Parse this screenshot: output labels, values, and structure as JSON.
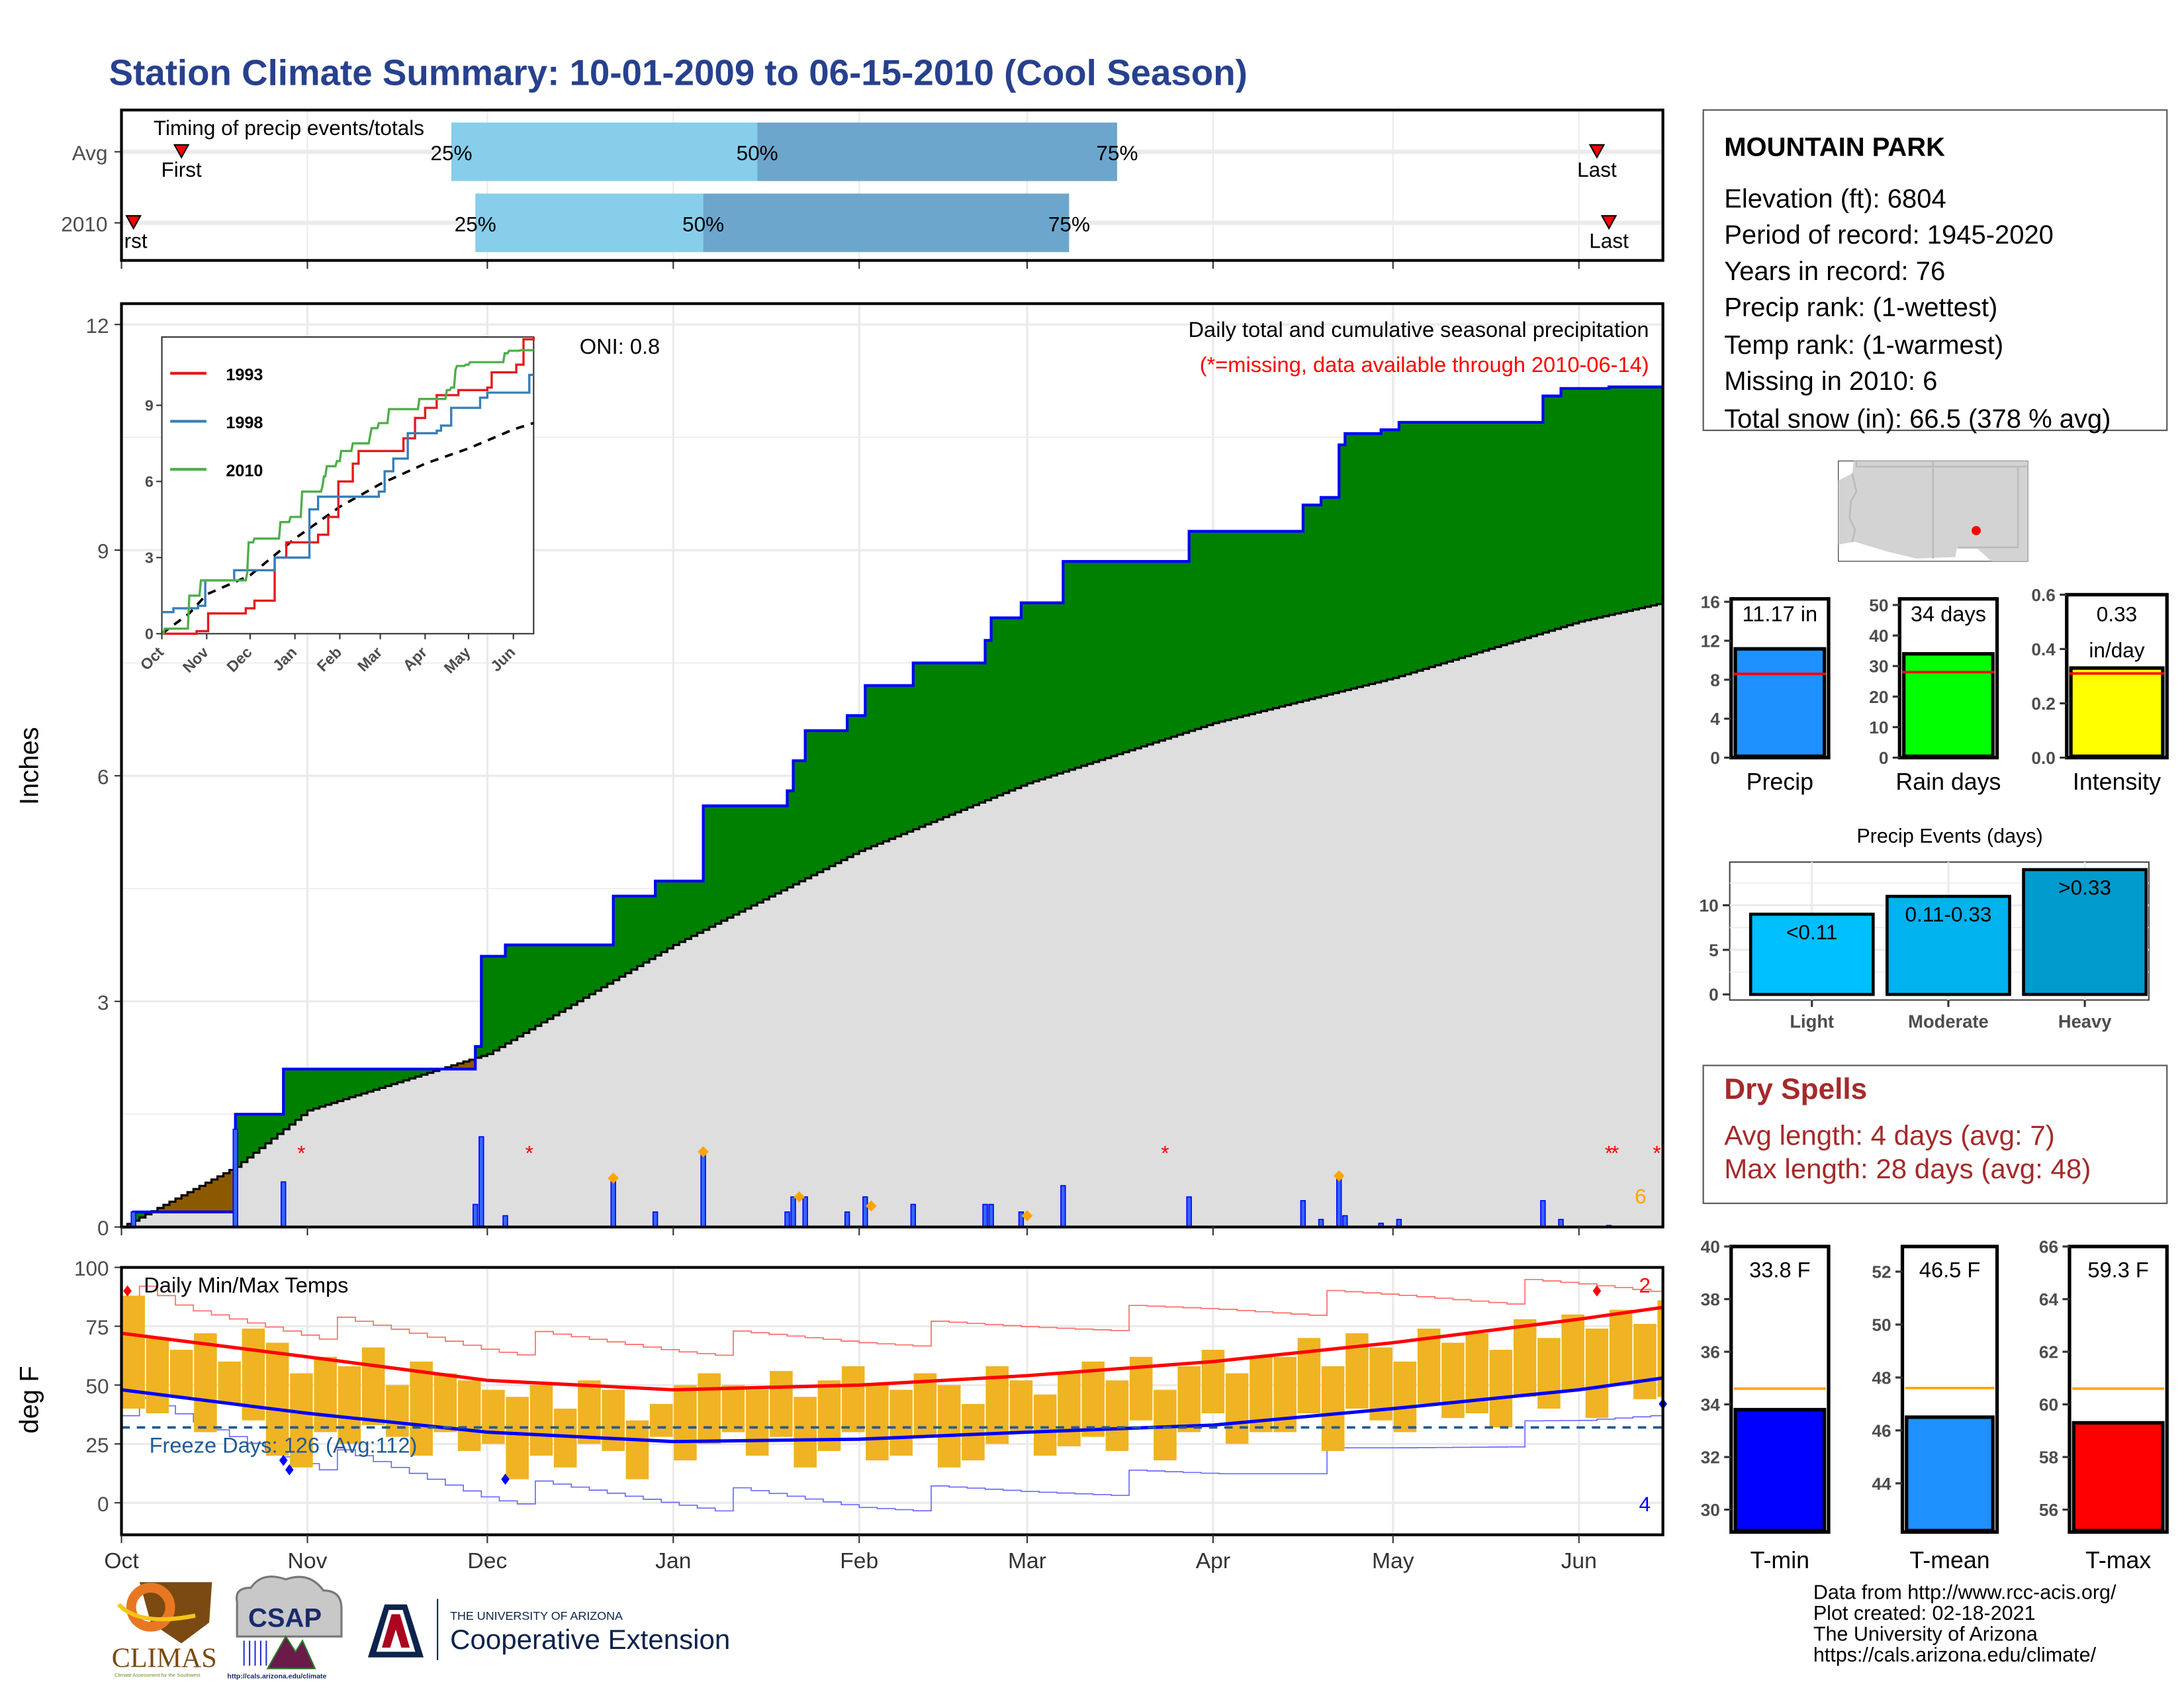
{
  "title": "Station Climate Summary: 10-01-2009 to 06-15-2010 (Cool Season)",
  "colors": {
    "title": "#27418e",
    "green": "#008000",
    "brown": "#8b5a00",
    "gray_area": "#dedede",
    "blue": "#0000ff",
    "red": "#ff0000",
    "orange": "#ffa500",
    "bar_temp": "#f0b323",
    "freeze": "#1f5a96",
    "dry": "#a52a2a"
  },
  "months": [
    {
      "label": "Oct",
      "day": 0
    },
    {
      "label": "Nov",
      "day": 31
    },
    {
      "label": "Dec",
      "day": 61
    },
    {
      "label": "Jan",
      "day": 92
    },
    {
      "label": "Feb",
      "day": 123
    },
    {
      "label": "Mar",
      "day": 151
    },
    {
      "label": "Apr",
      "day": 182
    },
    {
      "label": "May",
      "day": 212
    },
    {
      "label": "Jun",
      "day": 243
    }
  ],
  "season_days": 257,
  "timing": {
    "title": "Timing of precip events/totals",
    "rows": [
      {
        "label": "Avg",
        "first": 10,
        "last": 246,
        "q25": 55,
        "q50": 106,
        "q75": 166,
        "first_label": "First",
        "last_label": "Last",
        "q25_label": "25%",
        "q50_label": "50%",
        "q75_label": "75%"
      },
      {
        "label": "2010",
        "first": 2,
        "last": 248,
        "q25": 59,
        "q50": 97,
        "q75": 158,
        "first_label": "irst",
        "last_label": "Last",
        "q25_label": "25%",
        "q50_label": "50%",
        "q75_label": "75%"
      }
    ]
  },
  "chart_data": [
    {
      "type": "area",
      "name": "precip",
      "title": "Daily total and cumulative seasonal precipitation",
      "subtitle": "(*=missing, data available through 2010-06-14)",
      "ylabel": "Inches",
      "ylim": [
        0,
        12.3
      ],
      "yticks": [
        {
          "v": 0,
          "label": "0"
        },
        {
          "v": 3,
          "label": "3"
        },
        {
          "v": 6,
          "label": "6"
        },
        {
          "v": 9,
          "label": "9"
        },
        {
          "v": 12,
          "label": "12"
        }
      ],
      "oni": "ONI: 0.8",
      "events": [
        [
          2,
          0.2
        ],
        [
          19,
          1.3
        ],
        [
          27,
          0.6
        ],
        [
          59,
          0.3
        ],
        [
          60,
          1.2
        ],
        [
          64,
          0.15
        ],
        [
          82,
          0.65
        ],
        [
          89,
          0.2
        ],
        [
          97,
          1.0
        ],
        [
          111,
          0.2
        ],
        [
          112,
          0.4
        ],
        [
          114,
          0.4
        ],
        [
          121,
          0.2
        ],
        [
          124,
          0.4
        ],
        [
          132,
          0.3
        ],
        [
          144,
          0.3
        ],
        [
          145,
          0.3
        ],
        [
          150,
          0.2
        ],
        [
          157,
          0.55
        ],
        [
          178,
          0.4
        ],
        [
          197,
          0.35
        ],
        [
          200,
          0.1
        ],
        [
          203,
          0.7
        ],
        [
          204,
          0.15
        ],
        [
          210,
          0.05
        ],
        [
          213,
          0.1
        ],
        [
          237,
          0.35
        ],
        [
          240,
          0.1
        ],
        [
          248,
          0.02
        ]
      ],
      "avg_cumulative": [
        [
          0,
          0
        ],
        [
          19,
          0.8
        ],
        [
          31,
          1.55
        ],
        [
          61,
          2.3
        ],
        [
          92,
          3.75
        ],
        [
          123,
          5.0
        ],
        [
          151,
          5.9
        ],
        [
          182,
          6.7
        ],
        [
          212,
          7.3
        ],
        [
          243,
          8.05
        ],
        [
          257,
          8.3
        ]
      ],
      "missing_days": [
        30,
        68,
        174,
        248,
        249,
        256
      ],
      "snow_days": [
        [
          82,
          0.65
        ],
        [
          97,
          1.0
        ],
        [
          113,
          0.4
        ],
        [
          125,
          0.28
        ],
        [
          151,
          0.15
        ],
        [
          203,
          0.68
        ]
      ],
      "snow_count_label": "6"
    },
    {
      "type": "line",
      "name": "inset-cumulative",
      "ylim": [
        0,
        11.7
      ],
      "yticks": [
        {
          "v": 0,
          "label": "0"
        },
        {
          "v": 3,
          "label": "3"
        },
        {
          "v": 6,
          "label": "6"
        },
        {
          "v": 9,
          "label": "9"
        }
      ],
      "legend": [
        {
          "name": "1993",
          "color": "#e41a1c"
        },
        {
          "name": "1998",
          "color": "#377eb8"
        },
        {
          "name": "2010",
          "color": "#4daf4a"
        }
      ],
      "series": [
        {
          "name": "1993",
          "points": [
            [
              0,
              0
            ],
            [
              24,
              0.1
            ],
            [
              32,
              0.8
            ],
            [
              58,
              1.0
            ],
            [
              64,
              1.3
            ],
            [
              78,
              3.0
            ],
            [
              86,
              3.6
            ],
            [
              108,
              3.9
            ],
            [
              115,
              4.6
            ],
            [
              122,
              6.0
            ],
            [
              132,
              6.7
            ],
            [
              136,
              7.2
            ],
            [
              162,
              7.2
            ],
            [
              167,
              7.7
            ],
            [
              175,
              8.5
            ],
            [
              182,
              8.9
            ],
            [
              190,
              9.4
            ],
            [
              205,
              9.6
            ],
            [
              225,
              9.7
            ],
            [
              228,
              10.3
            ],
            [
              245,
              10.6
            ],
            [
              250,
              11.6
            ],
            [
              257,
              11.7
            ]
          ]
        },
        {
          "name": "1998",
          "points": [
            [
              0,
              0.85
            ],
            [
              8,
              1.0
            ],
            [
              25,
              1.1
            ],
            [
              30,
              2.1
            ],
            [
              50,
              2.5
            ],
            [
              78,
              3.0
            ],
            [
              98,
              3.0
            ],
            [
              102,
              4.9
            ],
            [
              108,
              5.4
            ],
            [
              150,
              5.6
            ],
            [
              154,
              6.4
            ],
            [
              160,
              6.9
            ],
            [
              170,
              7.9
            ],
            [
              190,
              8.0
            ],
            [
              193,
              8.2
            ],
            [
              200,
              8.9
            ],
            [
              220,
              9.3
            ],
            [
              225,
              9.5
            ],
            [
              252,
              9.5
            ],
            [
              254,
              10.2
            ],
            [
              257,
              10.2
            ]
          ]
        }
      ]
    },
    {
      "type": "bar",
      "name": "temps",
      "title": "Daily Min/Max Temps",
      "ylabel": "deg F",
      "ylim": [
        -12,
        100
      ],
      "yticks": [
        {
          "v": 0,
          "label": "0"
        },
        {
          "v": 25,
          "label": "25"
        },
        {
          "v": 50,
          "label": "50"
        },
        {
          "v": 75,
          "label": "75"
        },
        {
          "v": 100,
          "label": "100"
        }
      ],
      "bin_days": 4,
      "max": [
        88,
        70,
        65,
        72,
        60,
        74,
        68,
        55,
        62,
        58,
        66,
        50,
        60,
        55,
        52,
        48,
        45,
        50,
        40,
        52,
        48,
        35,
        42,
        50,
        55,
        50,
        48,
        56,
        45,
        52,
        58,
        50,
        48,
        55,
        50,
        42,
        58,
        52,
        46,
        55,
        60,
        52,
        62,
        48,
        58,
        65,
        55,
        62,
        62,
        70,
        58,
        72,
        66,
        60,
        74,
        68,
        72,
        65,
        78,
        70,
        80,
        74,
        82,
        76,
        86,
        82,
        90,
        84
      ],
      "min": [
        40,
        38,
        45,
        30,
        42,
        35,
        20,
        15,
        30,
        25,
        33,
        28,
        20,
        30,
        22,
        25,
        10,
        20,
        15,
        25,
        22,
        10,
        28,
        18,
        25,
        30,
        20,
        28,
        15,
        22,
        30,
        18,
        20,
        28,
        15,
        18,
        25,
        30,
        20,
        24,
        28,
        22,
        35,
        18,
        30,
        38,
        25,
        30,
        30,
        38,
        22,
        40,
        35,
        30,
        42,
        36,
        38,
        32,
        45,
        40,
        48,
        36,
        50,
        44,
        45,
        50,
        55,
        42
      ],
      "normal_max": [
        [
          0,
          72
        ],
        [
          31,
          62
        ],
        [
          61,
          52
        ],
        [
          92,
          48
        ],
        [
          123,
          50
        ],
        [
          151,
          54
        ],
        [
          182,
          60
        ],
        [
          212,
          68
        ],
        [
          243,
          78
        ],
        [
          257,
          83
        ]
      ],
      "normal_min": [
        [
          0,
          48
        ],
        [
          31,
          38
        ],
        [
          61,
          30
        ],
        [
          92,
          26
        ],
        [
          123,
          27
        ],
        [
          151,
          30
        ],
        [
          182,
          33
        ],
        [
          212,
          40
        ],
        [
          243,
          48
        ],
        [
          257,
          53
        ]
      ],
      "record_max": [
        [
          0,
          90
        ],
        [
          10,
          80
        ],
        [
          31,
          75
        ],
        [
          61,
          68
        ],
        [
          92,
          67
        ],
        [
          123,
          70
        ],
        [
          151,
          75
        ],
        [
          182,
          82
        ],
        [
          212,
          87
        ],
        [
          243,
          91
        ],
        [
          257,
          92
        ]
      ],
      "record_min": [
        [
          0,
          42
        ],
        [
          15,
          30
        ],
        [
          31,
          20
        ],
        [
          61,
          5
        ],
        [
          92,
          2
        ],
        [
          123,
          0
        ],
        [
          151,
          5
        ],
        [
          182,
          12
        ],
        [
          212,
          22
        ],
        [
          243,
          33
        ],
        [
          257,
          40
        ]
      ],
      "freeze_threshold": 32,
      "freeze_label": "Freeze Days: 126 (Avg:112)",
      "record_high_count": "2",
      "record_low_count": "4",
      "record_high_days": [
        [
          1,
          90
        ],
        [
          246,
          90
        ]
      ],
      "record_low_days": [
        [
          27,
          18
        ],
        [
          28,
          14
        ],
        [
          64,
          10
        ],
        [
          257,
          42
        ]
      ]
    },
    {
      "type": "bar",
      "name": "precip-total",
      "label": "Precip",
      "value": 11.17,
      "value_label": "11.17 in",
      "avg": 8.6,
      "ylim": [
        0,
        16.3
      ],
      "color": "#1e90ff",
      "yticks": [
        {
          "v": 0,
          "label": "0"
        },
        {
          "v": 4,
          "label": "4"
        },
        {
          "v": 8,
          "label": "8"
        },
        {
          "v": 12,
          "label": "12"
        },
        {
          "v": 16,
          "label": "16"
        }
      ]
    },
    {
      "type": "bar",
      "name": "rain-days",
      "label": "Rain days",
      "value": 34,
      "value_label": "34 days",
      "avg": 28,
      "ylim": [
        0,
        52
      ],
      "color": "#00ff00",
      "yticks": [
        {
          "v": 0,
          "label": "0"
        },
        {
          "v": 10,
          "label": "10"
        },
        {
          "v": 20,
          "label": "20"
        },
        {
          "v": 30,
          "label": "30"
        },
        {
          "v": 40,
          "label": "40"
        },
        {
          "v": 50,
          "label": "50"
        }
      ]
    },
    {
      "type": "bar",
      "name": "intensity",
      "label": "Intensity",
      "value": 0.33,
      "value_label": "0.33",
      "value_label2": "in/day",
      "avg": 0.31,
      "ylim": [
        0,
        0.6
      ],
      "color": "#ffff00",
      "yticks": [
        {
          "v": 0,
          "label": "0.0"
        },
        {
          "v": 0.2,
          "label": "0.2"
        },
        {
          "v": 0.4,
          "label": "0.4"
        },
        {
          "v": 0.6,
          "label": "0.6"
        }
      ]
    },
    {
      "type": "bar",
      "name": "precip-events",
      "title": "Precip Events (days)",
      "categories": [
        "Light",
        "Moderate",
        "Heavy"
      ],
      "bar_labels": [
        "<0.11",
        "0.11-0.33",
        ">0.33"
      ],
      "values": [
        9,
        11,
        14
      ],
      "colors": [
        "#00bfff",
        "#00b2ee",
        "#009acd"
      ],
      "ylim": [
        0,
        14.5
      ],
      "yticks": [
        {
          "v": 0,
          "label": "0"
        },
        {
          "v": 5,
          "label": "5"
        },
        {
          "v": 10,
          "label": "10"
        }
      ]
    },
    {
      "type": "bar",
      "name": "t-min",
      "label": "T-min",
      "value": 33.8,
      "value_label": "33.8 F",
      "avg": 34.6,
      "ylim": [
        29.15,
        40
      ],
      "color": "#0000ff",
      "yticks": [
        {
          "v": 30,
          "label": "30"
        },
        {
          "v": 32,
          "label": "32"
        },
        {
          "v": 34,
          "label": "34"
        },
        {
          "v": 36,
          "label": "36"
        },
        {
          "v": 38,
          "label": "38"
        },
        {
          "v": 40,
          "label": "40"
        }
      ]
    },
    {
      "type": "bar",
      "name": "t-mean",
      "label": "T-mean",
      "value": 46.5,
      "value_label": "46.5 F",
      "avg": 47.6,
      "ylim": [
        42.16,
        52.95
      ],
      "color": "#1e90ff",
      "yticks": [
        {
          "v": 44,
          "label": "44"
        },
        {
          "v": 46,
          "label": "46"
        },
        {
          "v": 48,
          "label": "48"
        },
        {
          "v": 50,
          "label": "50"
        },
        {
          "v": 52,
          "label": "52"
        }
      ]
    },
    {
      "type": "bar",
      "name": "t-max",
      "label": "T-max",
      "value": 59.3,
      "value_label": "59.3 F",
      "avg": 60.6,
      "ylim": [
        55.15,
        66
      ],
      "color": "#ff0000",
      "yticks": [
        {
          "v": 56,
          "label": "56"
        },
        {
          "v": 58,
          "label": "58"
        },
        {
          "v": 60,
          "label": "60"
        },
        {
          "v": 62,
          "label": "62"
        },
        {
          "v": 64,
          "label": "64"
        },
        {
          "v": 66,
          "label": "66"
        }
      ]
    }
  ],
  "station": {
    "name": "MOUNTAIN PARK",
    "lines": [
      "Elevation (ft): 6804",
      "Period of record: 1945-2020",
      "Years in record: 76",
      "Precip rank:  (1-wettest)",
      "Temp rank:  (1-warmest)",
      "Missing in 2010: 6",
      "Total snow (in): 66.5 (378 % avg)"
    ]
  },
  "dry_spells": {
    "title": "Dry Spells",
    "avg_length": "Avg length: 4 days (avg: 7)",
    "max_length": "Max length: 28 days (avg: 48)"
  },
  "footer": [
    "Data from http://www.rcc-acis.org/",
    "Plot created: 02-18-2021",
    "The University of Arizona",
    "https://cals.arizona.edu/climate/"
  ],
  "logos": {
    "climas": "CLIMAS",
    "climas_sub": "Climate Assessment for the Southwest",
    "climas_sub2": "A NOAA RISA TEAM",
    "csap": "CSAP",
    "csap_url": "http://cals.arizona.edu/climate",
    "ua_small": "THE UNIVERSITY OF ARIZONA",
    "ua_big": "Cooperative Extension"
  }
}
